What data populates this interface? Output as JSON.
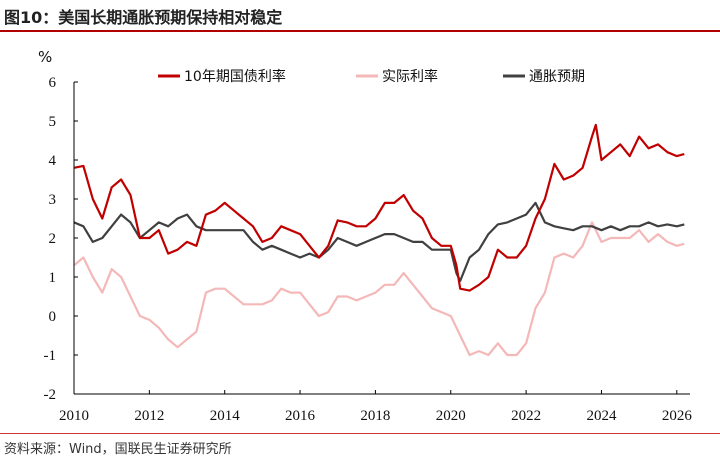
{
  "page": {
    "title": "图10：美国长期通胀预期保持相对稳定",
    "source": "资料来源：Wind，国联民生证券研究所"
  },
  "chart_data": {
    "type": "line",
    "title": "",
    "xlabel": "",
    "ylabel": "%",
    "xlim": [
      2010.0,
      2026.35
    ],
    "ylim": [
      -2,
      6
    ],
    "x_ticks": [
      "2010",
      "2012",
      "2014",
      "2016",
      "2018",
      "2020",
      "2022",
      "2024",
      "2026"
    ],
    "y_ticks": [
      "-2",
      "-1",
      "0",
      "1",
      "2",
      "3",
      "4",
      "5",
      "6"
    ],
    "grid": false,
    "legend_position": "top",
    "series": [
      {
        "name": "10年期国债利率",
        "color": "#c00000",
        "x": [
          2010.0,
          2010.25,
          2010.5,
          2010.75,
          2011.0,
          2011.25,
          2011.5,
          2011.75,
          2012.0,
          2012.25,
          2012.5,
          2012.75,
          2013.0,
          2013.25,
          2013.5,
          2013.75,
          2014.0,
          2014.25,
          2014.5,
          2014.75,
          2015.0,
          2015.25,
          2015.5,
          2015.75,
          2016.0,
          2016.25,
          2016.5,
          2016.75,
          2017.0,
          2017.25,
          2017.5,
          2017.75,
          2018.0,
          2018.25,
          2018.5,
          2018.75,
          2019.0,
          2019.25,
          2019.5,
          2019.75,
          2020.0,
          2020.15,
          2020.25,
          2020.5,
          2020.75,
          2021.0,
          2021.25,
          2021.5,
          2021.75,
          2022.0,
          2022.25,
          2022.5,
          2022.75,
          2023.0,
          2023.25,
          2023.5,
          2023.75,
          2023.85,
          2024.0,
          2024.25,
          2024.5,
          2024.75,
          2025.0,
          2025.25,
          2025.5,
          2025.75,
          2026.0,
          2026.2
        ],
        "y": [
          3.8,
          3.85,
          3.0,
          2.5,
          3.3,
          3.5,
          3.1,
          2.0,
          2.0,
          2.2,
          1.6,
          1.7,
          1.9,
          1.8,
          2.6,
          2.7,
          2.9,
          2.7,
          2.5,
          2.3,
          1.9,
          2.0,
          2.3,
          2.2,
          2.1,
          1.8,
          1.5,
          1.8,
          2.45,
          2.4,
          2.3,
          2.3,
          2.5,
          2.9,
          2.9,
          3.1,
          2.7,
          2.5,
          2.0,
          1.8,
          1.8,
          1.3,
          0.7,
          0.65,
          0.8,
          1.0,
          1.7,
          1.5,
          1.5,
          1.8,
          2.5,
          3.0,
          3.9,
          3.5,
          3.6,
          3.8,
          4.6,
          4.9,
          4.0,
          4.2,
          4.4,
          4.1,
          4.6,
          4.3,
          4.4,
          4.2,
          4.1,
          4.15
        ]
      },
      {
        "name": "实际利率",
        "color": "#f4b8b8",
        "x": [
          2010.0,
          2010.25,
          2010.5,
          2010.75,
          2011.0,
          2011.25,
          2011.5,
          2011.75,
          2012.0,
          2012.25,
          2012.5,
          2012.75,
          2013.0,
          2013.25,
          2013.5,
          2013.75,
          2014.0,
          2014.25,
          2014.5,
          2014.75,
          2015.0,
          2015.25,
          2015.5,
          2015.75,
          2016.0,
          2016.25,
          2016.5,
          2016.75,
          2017.0,
          2017.25,
          2017.5,
          2017.75,
          2018.0,
          2018.25,
          2018.5,
          2018.75,
          2019.0,
          2019.25,
          2019.5,
          2019.75,
          2020.0,
          2020.25,
          2020.5,
          2020.75,
          2021.0,
          2021.25,
          2021.5,
          2021.75,
          2022.0,
          2022.25,
          2022.5,
          2022.75,
          2023.0,
          2023.25,
          2023.5,
          2023.75,
          2024.0,
          2024.25,
          2024.5,
          2024.75,
          2025.0,
          2025.25,
          2025.5,
          2025.75,
          2026.0,
          2026.2
        ],
        "y": [
          1.3,
          1.5,
          1.0,
          0.6,
          1.2,
          1.0,
          0.5,
          0.0,
          -0.1,
          -0.3,
          -0.6,
          -0.8,
          -0.6,
          -0.4,
          0.6,
          0.7,
          0.7,
          0.5,
          0.3,
          0.3,
          0.3,
          0.4,
          0.7,
          0.6,
          0.6,
          0.3,
          0.0,
          0.1,
          0.5,
          0.5,
          0.4,
          0.5,
          0.6,
          0.8,
          0.8,
          1.1,
          0.8,
          0.5,
          0.2,
          0.1,
          0.0,
          -0.5,
          -1.0,
          -0.9,
          -1.0,
          -0.7,
          -1.0,
          -1.0,
          -0.7,
          0.2,
          0.6,
          1.5,
          1.6,
          1.5,
          1.8,
          2.4,
          1.9,
          2.0,
          2.0,
          2.0,
          2.2,
          1.9,
          2.1,
          1.9,
          1.8,
          1.85
        ]
      },
      {
        "name": "通胀预期",
        "color": "#404040",
        "x": [
          2010.0,
          2010.25,
          2010.5,
          2010.75,
          2011.0,
          2011.25,
          2011.5,
          2011.75,
          2012.0,
          2012.25,
          2012.5,
          2012.75,
          2013.0,
          2013.25,
          2013.5,
          2013.75,
          2014.0,
          2014.25,
          2014.5,
          2014.75,
          2015.0,
          2015.25,
          2015.5,
          2015.75,
          2016.0,
          2016.25,
          2016.5,
          2016.75,
          2017.0,
          2017.25,
          2017.5,
          2017.75,
          2018.0,
          2018.25,
          2018.5,
          2018.75,
          2019.0,
          2019.25,
          2019.5,
          2019.75,
          2020.0,
          2020.15,
          2020.25,
          2020.5,
          2020.75,
          2021.0,
          2021.25,
          2021.5,
          2021.75,
          2022.0,
          2022.25,
          2022.5,
          2022.75,
          2023.0,
          2023.25,
          2023.5,
          2023.75,
          2024.0,
          2024.25,
          2024.5,
          2024.75,
          2025.0,
          2025.25,
          2025.5,
          2025.75,
          2026.0,
          2026.2
        ],
        "y": [
          2.4,
          2.3,
          1.9,
          2.0,
          2.3,
          2.6,
          2.4,
          2.0,
          2.2,
          2.4,
          2.3,
          2.5,
          2.6,
          2.3,
          2.2,
          2.2,
          2.2,
          2.2,
          2.2,
          1.9,
          1.7,
          1.8,
          1.7,
          1.6,
          1.5,
          1.6,
          1.5,
          1.7,
          2.0,
          1.9,
          1.8,
          1.9,
          2.0,
          2.1,
          2.1,
          2.0,
          1.9,
          1.9,
          1.7,
          1.7,
          1.7,
          1.1,
          0.9,
          1.5,
          1.7,
          2.1,
          2.35,
          2.4,
          2.5,
          2.6,
          2.9,
          2.4,
          2.3,
          2.25,
          2.2,
          2.3,
          2.3,
          2.2,
          2.3,
          2.2,
          2.3,
          2.3,
          2.4,
          2.3,
          2.35,
          2.3,
          2.35
        ]
      }
    ]
  }
}
